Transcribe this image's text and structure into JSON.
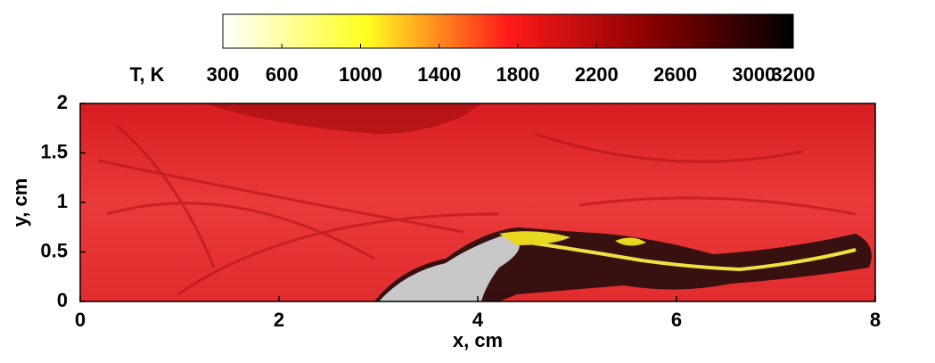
{
  "chart_data": {
    "type": "field",
    "xlabel": "x, cm",
    "ylabel": "y, cm",
    "colorbar_label": "T, K",
    "xlim": [
      0,
      8
    ],
    "xticks": [
      0,
      2,
      4,
      6,
      8
    ],
    "ylim": [
      0,
      2
    ],
    "yticks": [
      0,
      0.5,
      1,
      1.5,
      2
    ],
    "clim": [
      300,
      3200
    ],
    "cticks": [
      300,
      600,
      1000,
      1400,
      1800,
      2200,
      2600,
      3000,
      3200
    ],
    "colormap": [
      "#ffffff",
      "#ffff20",
      "#ff1a1a",
      "#8a0000",
      "#000000"
    ]
  }
}
